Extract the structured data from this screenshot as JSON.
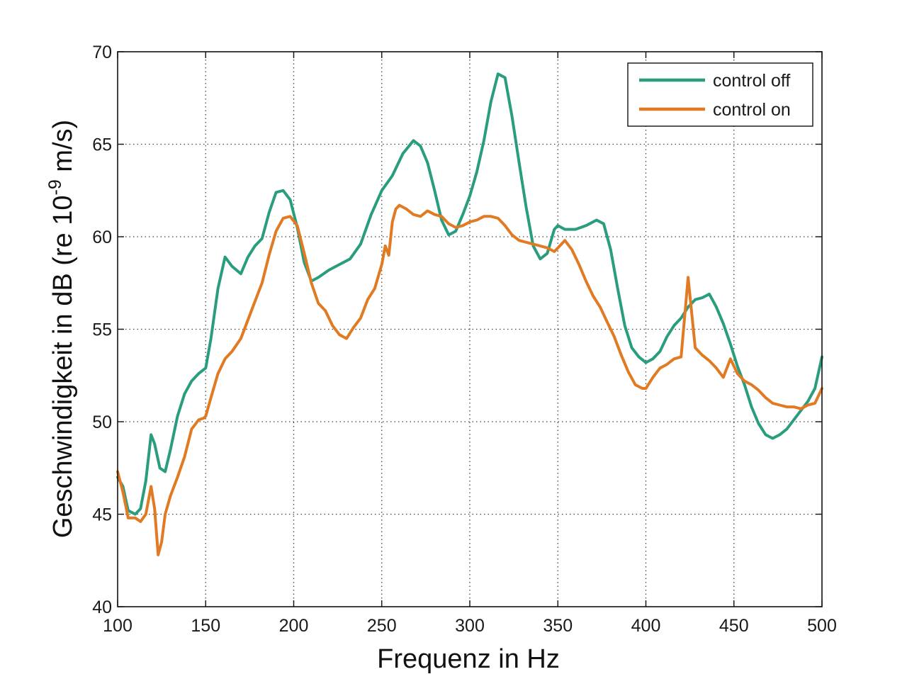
{
  "chart_data": {
    "type": "line",
    "xlabel": "Frequenz in Hz",
    "ylabel_main": "Geschwindigkeit in dB (re 10",
    "ylabel_exp": "-9",
    "ylabel_tail": " m/s)",
    "xlim": [
      100,
      500
    ],
    "ylim": [
      40,
      70
    ],
    "x_ticks": [
      100,
      150,
      200,
      250,
      300,
      350,
      400,
      450,
      500
    ],
    "y_ticks": [
      40,
      45,
      50,
      55,
      60,
      65,
      70
    ],
    "grid": true,
    "grid_style": "dotted",
    "legend_position": "top-right",
    "series": [
      {
        "name": "control off",
        "color": "#2a9d7f",
        "x": [
          100,
          103,
          106,
          110,
          113,
          116,
          119,
          121,
          124,
          127,
          130,
          134,
          138,
          142,
          146,
          150,
          153,
          157,
          161,
          165,
          170,
          174,
          178,
          182,
          186,
          190,
          194,
          198,
          202,
          206,
          210,
          214,
          220,
          226,
          232,
          238,
          244,
          250,
          256,
          262,
          268,
          272,
          276,
          280,
          284,
          288,
          292,
          296,
          300,
          304,
          308,
          312,
          316,
          320,
          324,
          328,
          332,
          336,
          340,
          344,
          348,
          350,
          354,
          360,
          366,
          372,
          376,
          380,
          384,
          388,
          392,
          396,
          400,
          404,
          408,
          412,
          416,
          420,
          424,
          428,
          432,
          436,
          440,
          444,
          448,
          452,
          456,
          460,
          464,
          468,
          472,
          476,
          480,
          484,
          488,
          492,
          496,
          500
        ],
        "y": [
          47,
          46.5,
          45.2,
          45,
          45.3,
          46.8,
          49.3,
          48.8,
          47.5,
          47.3,
          48.5,
          50.3,
          51.5,
          52.2,
          52.6,
          52.9,
          54.5,
          57.2,
          58.9,
          58.4,
          58,
          58.9,
          59.5,
          59.9,
          61.3,
          62.4,
          62.5,
          62,
          60.5,
          58.6,
          57.6,
          57.8,
          58.2,
          58.5,
          58.8,
          59.6,
          61.2,
          62.5,
          63.3,
          64.5,
          65.2,
          64.9,
          64,
          62.5,
          60.9,
          60.1,
          60.3,
          61.2,
          62.2,
          63.5,
          65.2,
          67.3,
          68.8,
          68.6,
          66.5,
          64,
          61.6,
          59.5,
          58.8,
          59.1,
          60.4,
          60.6,
          60.4,
          60.4,
          60.6,
          60.9,
          60.7,
          59.3,
          57.2,
          55.2,
          54,
          53.5,
          53.2,
          53.4,
          53.8,
          54.6,
          55.2,
          55.6,
          56.2,
          56.6,
          56.7,
          56.9,
          56.2,
          55.3,
          54.2,
          53,
          52,
          50.8,
          49.9,
          49.3,
          49.1,
          49.3,
          49.6,
          50.1,
          50.6,
          51.1,
          51.8,
          53.5
        ]
      },
      {
        "name": "control on",
        "color": "#e07b24",
        "x": [
          100,
          103,
          106,
          110,
          113,
          116,
          119,
          121,
          123,
          125,
          127,
          130,
          134,
          138,
          142,
          146,
          149,
          150,
          153,
          157,
          161,
          165,
          170,
          174,
          178,
          182,
          186,
          190,
          194,
          198,
          202,
          206,
          210,
          214,
          218,
          222,
          226,
          230,
          234,
          238,
          242,
          246,
          250,
          252,
          254,
          256,
          258,
          260,
          264,
          268,
          272,
          276,
          280,
          284,
          288,
          292,
          296,
          300,
          304,
          308,
          312,
          316,
          320,
          324,
          328,
          332,
          336,
          340,
          344,
          348,
          350,
          354,
          358,
          362,
          366,
          370,
          374,
          378,
          382,
          386,
          390,
          394,
          398,
          400,
          404,
          408,
          412,
          416,
          420,
          424,
          428,
          432,
          436,
          440,
          444,
          448,
          452,
          456,
          460,
          464,
          468,
          472,
          476,
          480,
          484,
          488,
          492,
          496,
          500
        ],
        "y": [
          47.3,
          46.2,
          44.8,
          44.8,
          44.6,
          45,
          46.5,
          45.3,
          42.8,
          43.5,
          45,
          46,
          47,
          48.1,
          49.6,
          50.1,
          50.2,
          50.3,
          51.3,
          52.6,
          53.4,
          53.8,
          54.5,
          55.5,
          56.5,
          57.5,
          59,
          60.3,
          61,
          61.1,
          60.6,
          59.1,
          57.5,
          56.4,
          56,
          55.2,
          54.7,
          54.5,
          55.1,
          55.6,
          56.6,
          57.2,
          58.5,
          59.5,
          59,
          60.8,
          61.5,
          61.7,
          61.5,
          61.2,
          61.1,
          61.4,
          61.2,
          61.1,
          60.7,
          60.5,
          60.6,
          60.8,
          60.9,
          61.1,
          61.1,
          61,
          60.6,
          60.1,
          59.8,
          59.7,
          59.6,
          59.5,
          59.4,
          59.2,
          59.4,
          59.8,
          59.3,
          58.5,
          57.6,
          56.8,
          56.2,
          55.4,
          54.6,
          53.6,
          52.7,
          52,
          51.8,
          51.8,
          52.4,
          52.9,
          53.1,
          53.4,
          53.5,
          57.8,
          54,
          53.6,
          53.3,
          52.9,
          52.4,
          53.4,
          52.6,
          52.2,
          52,
          51.7,
          51.3,
          51,
          50.9,
          50.8,
          50.8,
          50.7,
          50.9,
          51,
          51.8
        ]
      }
    ]
  }
}
